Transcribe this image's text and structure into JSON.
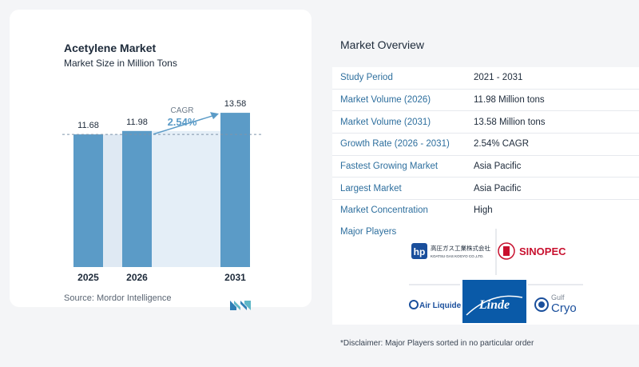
{
  "chart_data": {
    "type": "bar",
    "title": "Acetylene Market",
    "subtitle": "Market Size in Million Tons",
    "categories": [
      "2025",
      "2026",
      "2031"
    ],
    "values": [
      11.68,
      11.98,
      13.58
    ],
    "value_labels": [
      "11.68",
      "11.98",
      "13.58"
    ],
    "ylim": [
      0,
      14.5
    ],
    "annotation": {
      "label": "CAGR",
      "value": "2.54%"
    },
    "colors": {
      "bar": "#5b9bc7",
      "bar_light": "#a9cbe4",
      "band": "#e4eef7",
      "arrow": "#5b9bc7"
    }
  },
  "source": "Source:  Mordor Intelligence",
  "overview": {
    "title": "Market Overview",
    "rows": [
      {
        "key": "Study Period",
        "value": "2021 - 2031"
      },
      {
        "key": "Market Volume (2026)",
        "value": "11.98 Million tons"
      },
      {
        "key": "Market Volume (2031)",
        "value": "13.58 Million tons"
      },
      {
        "key": "Growth Rate (2026 - 2031)",
        "value": "2.54% CAGR"
      },
      {
        "key": "Fastest Growing Market",
        "value": "Asia Pacific"
      },
      {
        "key": "Largest Market",
        "value": "Asia Pacific"
      },
      {
        "key": "Market Concentration",
        "value": "High"
      }
    ],
    "players_title": "Major Players",
    "players": {
      "koatsu_jp": "高圧ガス工業株式会社",
      "koatsu_en": "KOATSU GAS KOGYO CO.,LTD.",
      "sinopec": "SINOPEC",
      "airliquide": "Air Liquide",
      "linde": "Linde",
      "gulf_1": "Gulf",
      "gulf_2": "Cryo"
    },
    "disclaimer": "*Disclaimer: Major Players sorted in no particular order"
  }
}
